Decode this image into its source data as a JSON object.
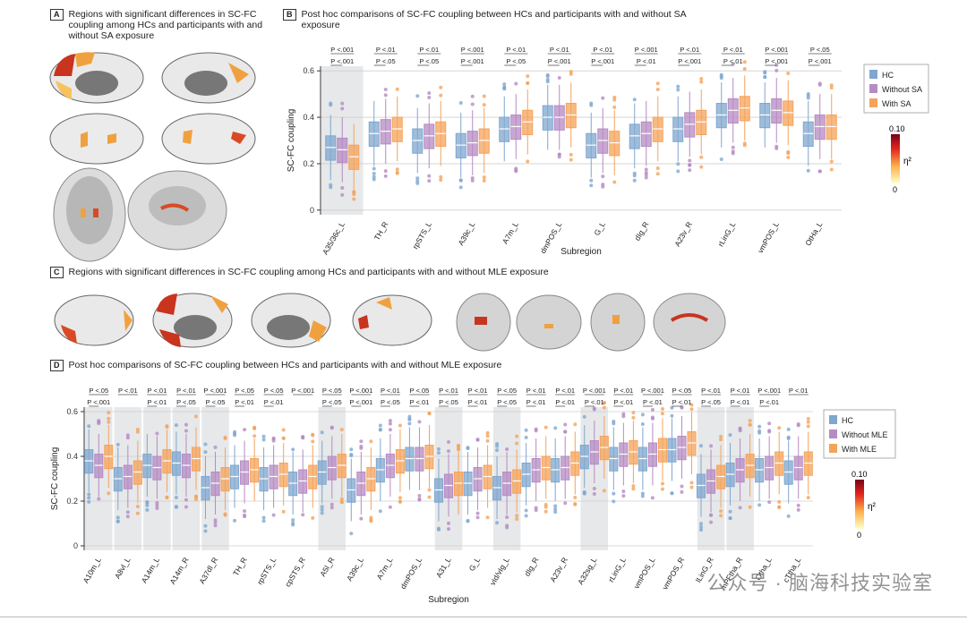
{
  "panels": {
    "a_letter": "A",
    "a_title": "Regions with significant differences in SC-FC coupling among HCs and participants with and without SA exposure",
    "b_letter": "B",
    "b_title": "Post hoc comparisons of SC-FC coupling between HCs and participants with and without SA exposure",
    "c_letter": "C",
    "c_title": "Regions with significant differences in SC-FC coupling among HCs and participants with and without MLE exposure",
    "d_letter": "D",
    "d_title": "Post hoc comparisons of SC-FC coupling between HCs and participants with and without MLE exposure"
  },
  "colorbar": {
    "max_label": "0.10",
    "min_label": "0",
    "symbol": "η²"
  },
  "colors": {
    "hc": "#7fa7cf",
    "without": "#b58bc3",
    "with": "#f5a35a",
    "shade": "#e6e8ea",
    "bracket": "#555555"
  },
  "watermark": "公众号 · 脑海科技实验室",
  "chart_data": [
    {
      "type": "box",
      "ylabel": "SC-FC coupling",
      "xlabel": "Subregion",
      "ylim": [
        -0.02,
        0.62
      ],
      "yticks": [
        0,
        0.2,
        0.4,
        0.6
      ],
      "ytick_labels": [
        "0",
        "0.2",
        "0.4",
        "0.6"
      ],
      "legend": [
        "HC",
        "Without SA",
        "With SA"
      ],
      "legend_position": "right",
      "categories": [
        "A35/36c_L",
        "TH_R",
        "rpSTS_L",
        "A39c_L",
        "A7m_L",
        "dmPOS_L",
        "G_L",
        "dIg_R",
        "A23v_R",
        "rLinG_L",
        "vmPOS_L",
        "OtHa_L"
      ],
      "shaded": [
        0
      ],
      "series": [
        {
          "name": "HC",
          "medians": [
            0.27,
            0.33,
            0.3,
            0.28,
            0.35,
            0.4,
            0.28,
            0.32,
            0.35,
            0.41,
            0.41,
            0.33
          ]
        },
        {
          "name": "Without SA",
          "medians": [
            0.26,
            0.34,
            0.32,
            0.29,
            0.36,
            0.4,
            0.3,
            0.33,
            0.37,
            0.43,
            0.43,
            0.36
          ]
        },
        {
          "name": "With SA",
          "medians": [
            0.23,
            0.35,
            0.33,
            0.3,
            0.38,
            0.41,
            0.29,
            0.35,
            0.38,
            0.44,
            0.42,
            0.36
          ]
        }
      ],
      "annotations": [
        [
          "P <.001",
          "P <.001"
        ],
        [
          "P <.01",
          "P <.05"
        ],
        [
          "P <.01",
          "P <.05"
        ],
        [
          "P <.001",
          "P <.001"
        ],
        [
          "P <.01",
          "P <.05"
        ],
        [
          "P <.01",
          "P <.001"
        ],
        [
          "P <.01",
          "P <.001"
        ],
        [
          "P <.001",
          "P <.01"
        ],
        [
          "P <.01",
          "P <.001"
        ],
        [
          "P <.01",
          "P <.01"
        ],
        [
          "P <.001",
          "P <.001"
        ],
        [
          "P <.05",
          "P <.001"
        ]
      ]
    },
    {
      "type": "box",
      "ylabel": "SC-FC coupling",
      "xlabel": "Subregion",
      "ylim": [
        -0.02,
        0.62
      ],
      "yticks": [
        0,
        0.2,
        0.4,
        0.6
      ],
      "ytick_labels": [
        "0",
        "0.2",
        "0.4",
        "0.6"
      ],
      "legend": [
        "HC",
        "Without MLE",
        "With MLE"
      ],
      "legend_position": "right",
      "categories": [
        "A10m_L",
        "A8vl_L",
        "A14m_L",
        "A14m_R",
        "A37dl_R",
        "TH_R",
        "rpSTS_L",
        "cpSTS_R",
        "A5l_R",
        "A39c_L",
        "A7m_L",
        "dmPOS_L",
        "A31_L",
        "G_L",
        "vId/vIg_L",
        "dIg_R",
        "A23v_R",
        "A32sg_L",
        "rLinG_L",
        "vmPOS_L",
        "vmPOS_R",
        "lLinG_R",
        "mPFtha_R",
        "Otha_L",
        "cTtha_L"
      ],
      "shaded": [
        0,
        1,
        2,
        3,
        4,
        8,
        12,
        14,
        17,
        21,
        22
      ],
      "series": [
        {
          "name": "HC",
          "medians": [
            0.38,
            0.3,
            0.36,
            0.37,
            0.26,
            0.31,
            0.3,
            0.28,
            0.33,
            0.25,
            0.34,
            0.39,
            0.25,
            0.28,
            0.26,
            0.32,
            0.34,
            0.4,
            0.39,
            0.39,
            0.43,
            0.27,
            0.32,
            0.34,
            0.33
          ]
        },
        {
          "name": "Without MLE",
          "medians": [
            0.36,
            0.31,
            0.35,
            0.36,
            0.28,
            0.33,
            0.31,
            0.29,
            0.35,
            0.28,
            0.36,
            0.39,
            0.27,
            0.3,
            0.28,
            0.34,
            0.35,
            0.42,
            0.41,
            0.41,
            0.44,
            0.29,
            0.34,
            0.35,
            0.35
          ]
        },
        {
          "name": "With MLE",
          "medians": [
            0.4,
            0.33,
            0.38,
            0.39,
            0.3,
            0.34,
            0.32,
            0.31,
            0.36,
            0.3,
            0.38,
            0.4,
            0.28,
            0.31,
            0.29,
            0.35,
            0.37,
            0.44,
            0.42,
            0.43,
            0.46,
            0.31,
            0.36,
            0.37,
            0.37
          ]
        }
      ],
      "annotations": [
        [
          "P <.05",
          "P <.001"
        ],
        [
          "P <.01",
          ""
        ],
        [
          "P <.01",
          "P <.01"
        ],
        [
          "P <.01",
          "P <.05"
        ],
        [
          "P <.001",
          "P <.05"
        ],
        [
          "P <.05",
          "P <.01"
        ],
        [
          "P <.05",
          "P <.01"
        ],
        [
          "P <.001",
          ""
        ],
        [
          "P <.05",
          "P <.05"
        ],
        [
          "P <.001",
          "P <.001"
        ],
        [
          "P <.01",
          "P <.05"
        ],
        [
          "P <.05",
          "P <.01"
        ],
        [
          "P <.01",
          "P <.05"
        ],
        [
          "P <.01",
          "P <.01"
        ],
        [
          "P <.05",
          "P <.05"
        ],
        [
          "P <.01",
          "P <.01"
        ],
        [
          "P <.01",
          "P <.01"
        ],
        [
          "P <.001",
          "P <.01"
        ],
        [
          "P <.01",
          "P <.01"
        ],
        [
          "P <.001",
          "P <.01"
        ],
        [
          "P <.05",
          "P <.01"
        ],
        [
          "P <.01",
          "P <.05"
        ],
        [
          "P <.01",
          "P <.01"
        ],
        [
          "P <.001",
          "P <.01"
        ],
        [
          "P <.01",
          ""
        ]
      ]
    }
  ]
}
